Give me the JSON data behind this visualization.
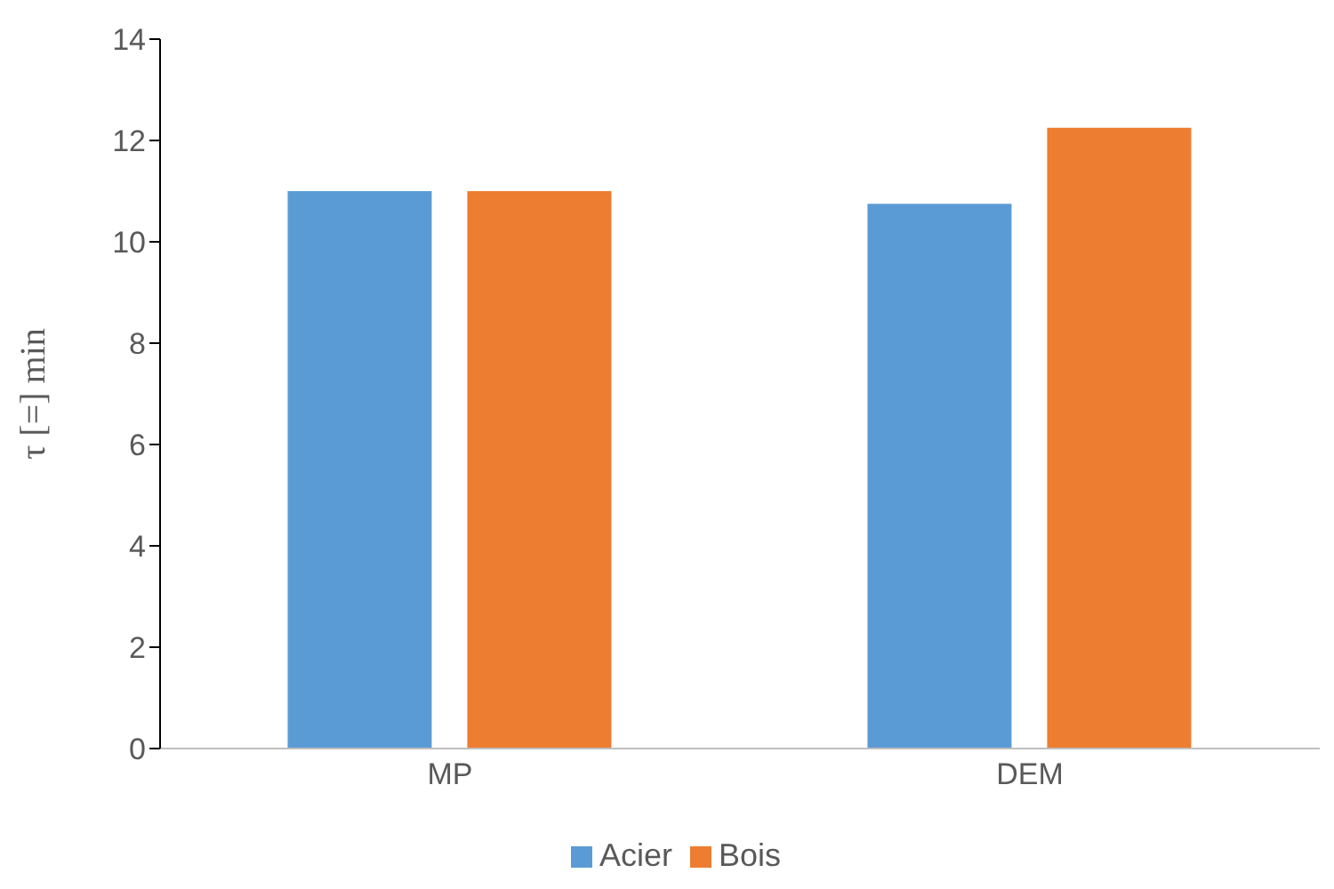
{
  "chart_data": {
    "type": "bar",
    "ylabel": "τ [=] min",
    "categories": [
      "MP",
      "DEM"
    ],
    "series": [
      {
        "name": "Acier",
        "color": "#5b9bd5",
        "values": [
          11,
          10.75
        ]
      },
      {
        "name": "Bois",
        "color": "#ed7d31",
        "values": [
          11,
          12.25
        ]
      }
    ],
    "ylim": [
      0,
      14
    ],
    "yticks": [
      0,
      2,
      4,
      6,
      8,
      10,
      12,
      14
    ],
    "grid": false,
    "legend": "bottom"
  }
}
